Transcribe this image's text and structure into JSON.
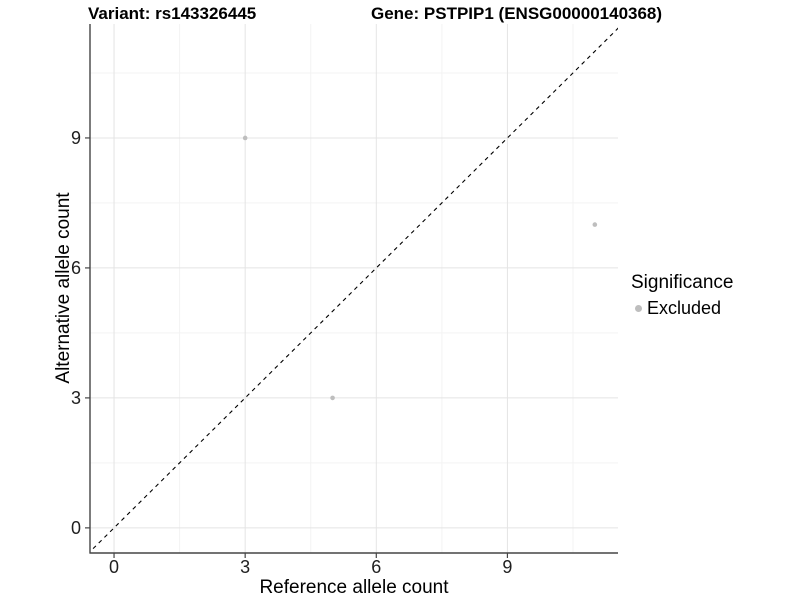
{
  "titles": {
    "variant": "Variant: rs143326445",
    "gene": "Gene: PSTPIP1 (ENSG00000140368)"
  },
  "legend": {
    "title": "Significance",
    "items": [
      {
        "label": "Excluded",
        "color": "#bebebe"
      }
    ]
  },
  "colors": {
    "point": "#bebebe",
    "grid_major": "#e4e4e4",
    "grid_minor": "#f3f3f3",
    "axis_line": "#454545",
    "tick_text": "#1f1f1f",
    "reference_line": "#000000",
    "background": "#ffffff"
  },
  "chart_data": {
    "type": "scatter",
    "title_left": "Variant: rs143326445",
    "title_right": "Gene: PSTPIP1 (ENSG00000140368)",
    "xlabel": "Reference allele count",
    "ylabel": "Alternative allele count",
    "xlim": [
      -0.55,
      11.53
    ],
    "ylim": [
      -0.58,
      11.63
    ],
    "x_major_ticks": [
      0,
      3,
      6,
      9
    ],
    "y_major_ticks": [
      0,
      3,
      6,
      9
    ],
    "x_minor_ticks": [
      1.5,
      4.5,
      7.5,
      10.5
    ],
    "y_minor_ticks": [
      1.5,
      4.5,
      7.5,
      10.5
    ],
    "grid": "major+minor",
    "legend_position": "right",
    "legend_title": "Significance",
    "series": [
      {
        "name": "Excluded",
        "color": "#bebebe",
        "marker": "circle",
        "marker_radius_px": 2.3,
        "points": [
          [
            3,
            9
          ],
          [
            5,
            3
          ],
          [
            11,
            7
          ]
        ]
      }
    ],
    "reference_line": {
      "kind": "identity",
      "slope": 1,
      "intercept": 0,
      "style": "dashed",
      "color": "#000000"
    }
  }
}
